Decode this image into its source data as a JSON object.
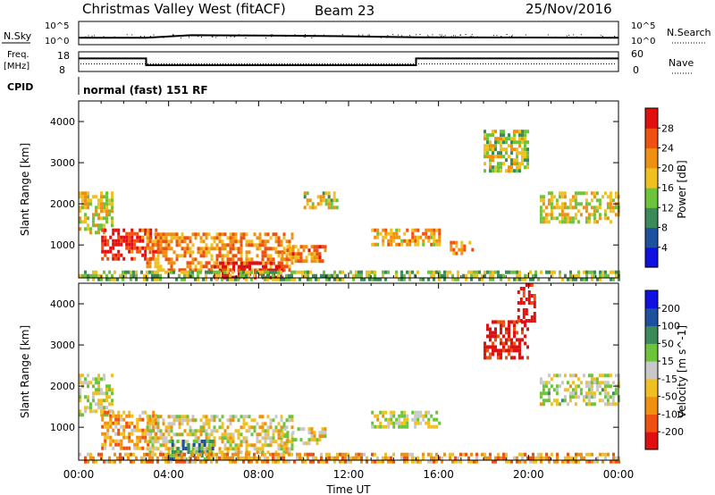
{
  "header": {
    "title": "Christmas Valley West (fitACF)",
    "beam": "Beam 23",
    "date": "25/Nov/2016"
  },
  "strip_labels": {
    "nsky": "N.Sky",
    "freq_top": "Freq.",
    "freq_unit": "[MHz]",
    "cpid": "CPID",
    "nsearch": "N.Search",
    "nave": "Nave",
    "nsky_ticks": [
      "10^5",
      "10^0"
    ],
    "freq_ticks": [
      "18",
      "8"
    ],
    "right_ticks_top": [
      "10^5",
      "10^0"
    ],
    "right_ticks_bottom": [
      "60",
      "0"
    ],
    "cpid_text": "normal (fast) 151 RF"
  },
  "x_axis": {
    "label": "Time UT",
    "ticks": [
      "00:00",
      "04:00",
      "08:00",
      "12:00",
      "16:00",
      "20:00",
      "00:00"
    ]
  },
  "colors": {
    "power_scale": [
      "#1010e0",
      "#1e50a0",
      "#3a8a5a",
      "#6cc43a",
      "#f0c020",
      "#f09010",
      "#f05010",
      "#e01010"
    ],
    "velocity_scale": [
      "#e01010",
      "#f05010",
      "#f09010",
      "#f0c020",
      "#c8c8c8",
      "#6cc43a",
      "#3a8a5a",
      "#1e50a0",
      "#1010e0"
    ]
  },
  "chart_data": [
    {
      "type": "line",
      "name": "strip-nsky",
      "ylabel": "N.Sky",
      "y_scale": "log",
      "ylim": [
        1,
        100000
      ],
      "series": [
        {
          "name": "N.Sky",
          "x": [
            "00:00",
            "03:00",
            "05:00",
            "09:00",
            "12:00",
            "15:00",
            "20:00",
            "24:00"
          ],
          "values": [
            15,
            15,
            80,
            60,
            40,
            20,
            18,
            15
          ]
        }
      ]
    },
    {
      "type": "line",
      "name": "strip-freq",
      "ylabel": "Freq. [MHz]",
      "ylim": [
        8,
        18
      ],
      "series": [
        {
          "name": "Freq.",
          "x": [
            "00:00",
            "03:00",
            "03:00",
            "15:00",
            "15:00",
            "24:00"
          ],
          "values": [
            15,
            15,
            10.8,
            10.8,
            15,
            15
          ]
        }
      ]
    },
    {
      "type": "heatmap",
      "name": "power",
      "ylabel": "Slant Range [km]",
      "xlabel": "Time UT",
      "colorbar_label": "Power [dB]",
      "colorbar_ticks": [
        "4",
        "8",
        "12",
        "16",
        "20",
        "24",
        "28"
      ],
      "ylim": [
        200,
        4500
      ],
      "yticks": [
        1000,
        2000,
        3000,
        4000
      ],
      "xlim": [
        0,
        24
      ],
      "regions": [
        {
          "t": [
            0.0,
            1.5
          ],
          "r": [
            1300,
            2300
          ],
          "level": 0.55
        },
        {
          "t": [
            1.0,
            3.5
          ],
          "r": [
            700,
            1400
          ],
          "level": 0.9
        },
        {
          "t": [
            3.0,
            9.5
          ],
          "r": [
            400,
            1300
          ],
          "level": 0.7
        },
        {
          "t": [
            6.0,
            9.0
          ],
          "r": [
            250,
            600
          ],
          "level": 0.95
        },
        {
          "t": [
            9.0,
            11.0
          ],
          "r": [
            600,
            1000
          ],
          "level": 0.75
        },
        {
          "t": [
            10.0,
            11.5
          ],
          "r": [
            1900,
            2300
          ],
          "level": 0.5
        },
        {
          "t": [
            13.0,
            16.0
          ],
          "r": [
            1000,
            1400
          ],
          "level": 0.65
        },
        {
          "t": [
            16.5,
            17.5
          ],
          "r": [
            800,
            1100
          ],
          "level": 0.7
        },
        {
          "t": [
            18.0,
            20.0
          ],
          "r": [
            2800,
            3800
          ],
          "level": 0.5
        },
        {
          "t": [
            20.5,
            24.0
          ],
          "r": [
            1600,
            2300
          ],
          "level": 0.55
        },
        {
          "t": [
            0.0,
            24.0
          ],
          "r": [
            200,
            380
          ],
          "level": 0.45
        }
      ]
    },
    {
      "type": "heatmap",
      "name": "velocity",
      "ylabel": "Slant Range [km]",
      "xlabel": "Time UT",
      "colorbar_label": "Velocity [m s^-1]",
      "colorbar_ticks": [
        "-200",
        "-100",
        "-50",
        "-15",
        "15",
        "50",
        "100",
        "200"
      ],
      "ylim": [
        200,
        4500
      ],
      "yticks": [
        1000,
        2000,
        3000,
        4000
      ],
      "xlim": [
        0,
        24
      ],
      "regions": [
        {
          "t": [
            0.0,
            1.5
          ],
          "r": [
            1300,
            2300
          ],
          "level": 0.5
        },
        {
          "t": [
            1.0,
            3.5
          ],
          "r": [
            500,
            1400
          ],
          "level": 0.3
        },
        {
          "t": [
            3.0,
            9.5
          ],
          "r": [
            400,
            1300
          ],
          "level": 0.45
        },
        {
          "t": [
            4.0,
            6.0
          ],
          "r": [
            250,
            700
          ],
          "level": 0.7
        },
        {
          "t": [
            9.0,
            11.0
          ],
          "r": [
            600,
            1000
          ],
          "level": 0.45
        },
        {
          "t": [
            13.0,
            16.0
          ],
          "r": [
            1000,
            1400
          ],
          "level": 0.5
        },
        {
          "t": [
            18.0,
            20.0
          ],
          "r": [
            2700,
            3600
          ],
          "level": 0.05
        },
        {
          "t": [
            19.5,
            20.3
          ],
          "r": [
            3600,
            4500
          ],
          "level": 0.02
        },
        {
          "t": [
            20.5,
            24.0
          ],
          "r": [
            1600,
            2300
          ],
          "level": 0.5
        },
        {
          "t": [
            0.0,
            24.0
          ],
          "r": [
            200,
            380
          ],
          "level": 0.3
        }
      ]
    }
  ]
}
